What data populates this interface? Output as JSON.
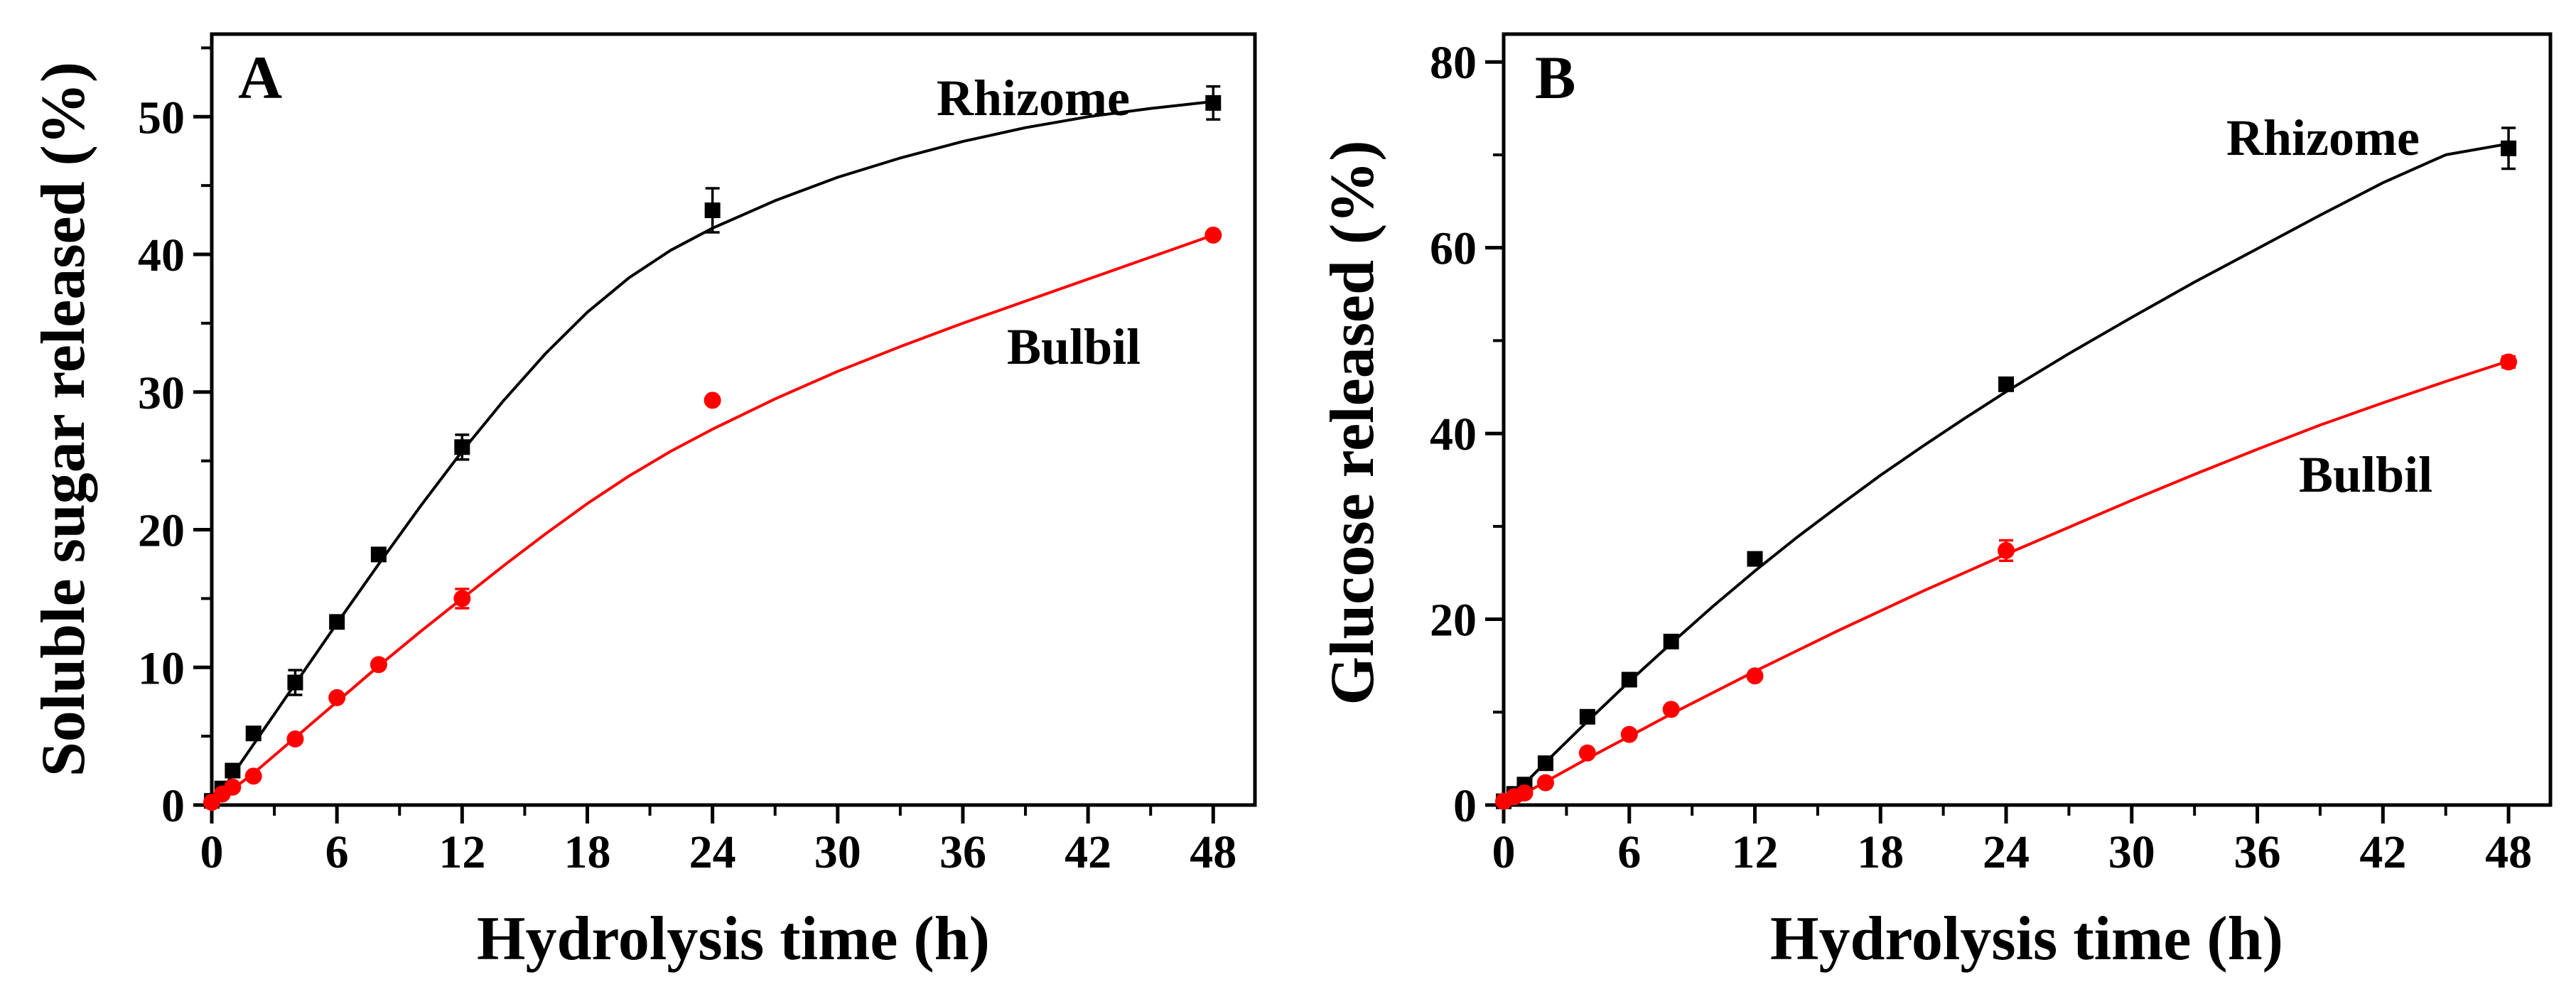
{
  "chart_data": [
    {
      "panel": "A",
      "type": "scatter",
      "xlabel": "Hydrolysis time (h)",
      "ylabel": "Soluble sugar released (%)",
      "xlim": [
        0,
        50
      ],
      "ylim": [
        0,
        56
      ],
      "xticks": [
        0,
        6,
        12,
        18,
        24,
        30,
        36,
        42,
        48
      ],
      "yticks": [
        0,
        10,
        20,
        30,
        40,
        50
      ],
      "colors": {
        "Rhizome": "#000000",
        "Bulbil": "#ff0000"
      },
      "series": [
        {
          "name": "Rhizome",
          "marker": "square",
          "x": [
            0,
            0.5,
            1,
            2,
            4,
            6,
            8,
            12,
            24,
            48
          ],
          "values": [
            0.3,
            1.2,
            2.5,
            5.2,
            8.9,
            13.3,
            18.2,
            26.0,
            43.2,
            51.0
          ],
          "errors": [
            0,
            0,
            0,
            0,
            0.9,
            0,
            0,
            0.9,
            1.6,
            1.2
          ],
          "fit": [
            [
              0,
              0
            ],
            [
              2,
              4.4
            ],
            [
              4,
              8.8
            ],
            [
              6,
              13.2
            ],
            [
              8,
              17.5
            ],
            [
              10,
              21.7
            ],
            [
              12,
              25.7
            ],
            [
              14,
              29.4
            ],
            [
              16,
              32.8
            ],
            [
              18,
              35.8
            ],
            [
              20,
              38.3
            ],
            [
              22,
              40.3
            ],
            [
              24,
              41.9
            ],
            [
              27,
              43.9
            ],
            [
              30,
              45.6
            ],
            [
              33,
              47.0
            ],
            [
              36,
              48.2
            ],
            [
              39,
              49.2
            ],
            [
              42,
              50.0
            ],
            [
              45,
              50.6
            ],
            [
              48,
              51.1
            ]
          ]
        },
        {
          "name": "Bulbil",
          "marker": "circle",
          "x": [
            0,
            0.5,
            1,
            2,
            4,
            6,
            8,
            12,
            24,
            48
          ],
          "values": [
            0.2,
            0.8,
            1.3,
            2.1,
            4.8,
            7.8,
            10.2,
            15.0,
            29.4,
            41.4
          ],
          "errors": [
            0,
            0,
            0,
            0,
            0,
            0,
            0,
            0.7,
            0,
            0
          ],
          "fit": [
            [
              0,
              0
            ],
            [
              2,
              2.3
            ],
            [
              4,
              4.9
            ],
            [
              6,
              7.5
            ],
            [
              8,
              10.1
            ],
            [
              10,
              12.6
            ],
            [
              12,
              15.0
            ],
            [
              14,
              17.4
            ],
            [
              16,
              19.7
            ],
            [
              18,
              21.9
            ],
            [
              20,
              23.9
            ],
            [
              22,
              25.7
            ],
            [
              24,
              27.3
            ],
            [
              27,
              29.5
            ],
            [
              30,
              31.5
            ],
            [
              33,
              33.3
            ],
            [
              36,
              35.0
            ],
            [
              39,
              36.6
            ],
            [
              42,
              38.2
            ],
            [
              45,
              39.8
            ],
            [
              48,
              41.4
            ]
          ]
        }
      ]
    },
    {
      "panel": "B",
      "type": "scatter",
      "xlabel": "Hydrolysis time (h)",
      "ylabel": "Glucose released (%)",
      "xlim": [
        0,
        50
      ],
      "ylim": [
        0,
        83
      ],
      "xticks": [
        0,
        6,
        12,
        18,
        24,
        30,
        36,
        42,
        48
      ],
      "yticks": [
        0,
        20,
        40,
        60,
        80
      ],
      "colors": {
        "Rhizome": "#000000",
        "Bulbil": "#ff0000"
      },
      "series": [
        {
          "name": "Rhizome",
          "marker": "square",
          "x": [
            0,
            0.5,
            1,
            2,
            4,
            6,
            8,
            12,
            24,
            48
          ],
          "values": [
            0.4,
            1.2,
            2.2,
            4.5,
            9.5,
            13.5,
            17.6,
            26.5,
            45.3,
            70.7
          ],
          "errors": [
            0,
            0,
            0,
            0,
            0,
            0,
            0,
            0,
            0,
            2.2
          ],
          "fit": [
            [
              0,
              0
            ],
            [
              2,
              4.6
            ],
            [
              4,
              9.0
            ],
            [
              6,
              13.3
            ],
            [
              8,
              17.4
            ],
            [
              10,
              21.4
            ],
            [
              12,
              25.2
            ],
            [
              14,
              28.8
            ],
            [
              16,
              32.2
            ],
            [
              18,
              35.5
            ],
            [
              20,
              38.6
            ],
            [
              22,
              41.6
            ],
            [
              24,
              44.5
            ],
            [
              27,
              48.6
            ],
            [
              30,
              52.5
            ],
            [
              33,
              56.3
            ],
            [
              36,
              59.9
            ],
            [
              39,
              63.5
            ],
            [
              42,
              67.0
            ],
            [
              45,
              70.0
            ],
            [
              48,
              71.2
            ]
          ]
        },
        {
          "name": "Bulbil",
          "marker": "circle",
          "x": [
            0,
            0.5,
            1,
            2,
            4,
            6,
            8,
            12,
            24,
            48
          ],
          "values": [
            0.4,
            0.9,
            1.3,
            2.4,
            5.6,
            7.6,
            10.3,
            13.9,
            27.4,
            47.7
          ],
          "errors": [
            0,
            0,
            0,
            0,
            0,
            0,
            0,
            0,
            1.1,
            0.6
          ],
          "fit": [
            [
              0,
              0
            ],
            [
              2,
              2.5
            ],
            [
              4,
              5.0
            ],
            [
              6,
              7.4
            ],
            [
              8,
              9.8
            ],
            [
              10,
              12.1
            ],
            [
              12,
              14.4
            ],
            [
              14,
              16.6
            ],
            [
              16,
              18.8
            ],
            [
              18,
              20.9
            ],
            [
              20,
              23.0
            ],
            [
              22,
              25.0
            ],
            [
              24,
              27.0
            ],
            [
              27,
              29.9
            ],
            [
              30,
              32.8
            ],
            [
              33,
              35.6
            ],
            [
              36,
              38.3
            ],
            [
              39,
              40.9
            ],
            [
              42,
              43.3
            ],
            [
              45,
              45.6
            ],
            [
              48,
              47.8
            ]
          ]
        }
      ]
    }
  ]
}
